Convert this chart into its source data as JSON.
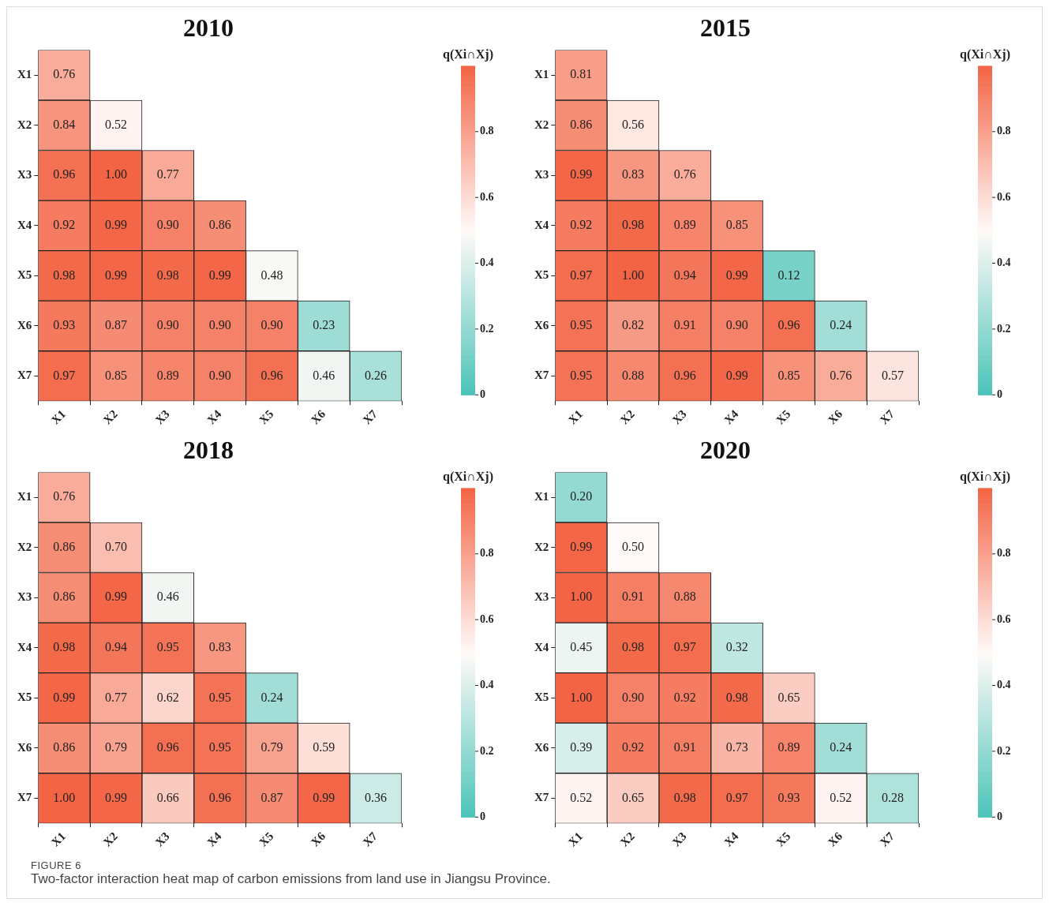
{
  "chart_data": [
    {
      "type": "heatmap",
      "title": "2010",
      "clabel": "q(Xi∩Xj)",
      "categories": [
        "X1",
        "X2",
        "X3",
        "X4",
        "X5",
        "X6",
        "X7"
      ],
      "y_categories": [
        "X1",
        "X2",
        "X3",
        "X4",
        "X5",
        "X6",
        "X7"
      ],
      "clim": [
        0,
        1
      ],
      "cticks": [
        0,
        0.2,
        0.4,
        0.6,
        0.8
      ],
      "cells": [
        [
          0.76,
          null,
          null,
          null,
          null,
          null,
          null
        ],
        [
          0.84,
          0.52,
          null,
          null,
          null,
          null,
          null
        ],
        [
          0.96,
          1.0,
          0.77,
          null,
          null,
          null,
          null
        ],
        [
          0.92,
          0.99,
          0.9,
          0.86,
          null,
          null,
          null
        ],
        [
          0.98,
          0.99,
          0.98,
          0.99,
          0.48,
          null,
          null
        ],
        [
          0.93,
          0.87,
          0.9,
          0.9,
          0.9,
          0.23,
          null
        ],
        [
          0.97,
          0.85,
          0.89,
          0.9,
          0.96,
          0.46,
          0.26
        ]
      ],
      "cell_labels": [
        [
          "0.76",
          null,
          null,
          null,
          null,
          null,
          null
        ],
        [
          "0.84",
          "0.52",
          null,
          null,
          null,
          null,
          null
        ],
        [
          "0.96",
          "1.00",
          "0.77",
          null,
          null,
          null,
          null
        ],
        [
          "0.92",
          "0.99",
          "0.90",
          "0.86",
          null,
          null,
          null
        ],
        [
          "0.98",
          "0.99",
          "0.98",
          "0.99",
          "0.48",
          null,
          null
        ],
        [
          "0.93",
          "0.87",
          "0.90",
          "0.90",
          "0.90",
          "0.23",
          null
        ],
        [
          "0.97",
          "0.85",
          "0.89",
          "0.90",
          "0.96",
          "0.46",
          "0.26"
        ]
      ]
    },
    {
      "type": "heatmap",
      "title": "2015",
      "clabel": "q(Xi∩Xj)",
      "categories": [
        "X1",
        "X2",
        "X3",
        "X4",
        "X5",
        "X6",
        "X7"
      ],
      "y_categories": [
        "X1",
        "X2",
        "X3",
        "X4",
        "X5",
        "X6",
        "X7"
      ],
      "clim": [
        0,
        1
      ],
      "cticks": [
        0,
        0.2,
        0.4,
        0.6,
        0.8
      ],
      "cells": [
        [
          0.81,
          null,
          null,
          null,
          null,
          null,
          null
        ],
        [
          0.86,
          0.56,
          null,
          null,
          null,
          null,
          null
        ],
        [
          0.99,
          0.83,
          0.76,
          null,
          null,
          null,
          null
        ],
        [
          0.92,
          0.98,
          0.89,
          0.85,
          null,
          null,
          null
        ],
        [
          0.97,
          1.0,
          0.94,
          0.99,
          0.12,
          null,
          null
        ],
        [
          0.95,
          0.82,
          0.91,
          0.9,
          0.96,
          0.24,
          null
        ],
        [
          0.95,
          0.88,
          0.96,
          0.99,
          0.85,
          0.76,
          0.57
        ]
      ],
      "cell_labels": [
        [
          "0.81",
          null,
          null,
          null,
          null,
          null,
          null
        ],
        [
          "0.86",
          "0.56",
          null,
          null,
          null,
          null,
          null
        ],
        [
          "0.99",
          "0.83",
          "0.76",
          null,
          null,
          null,
          null
        ],
        [
          "0.92",
          "0.98",
          "0.89",
          "0.85",
          null,
          null,
          null
        ],
        [
          "0.97",
          "1.00",
          "0.94",
          "0.99",
          "0.12",
          null,
          null
        ],
        [
          "0.95",
          "0.82",
          "0.91",
          "0.90",
          "0.96",
          "0.24",
          null
        ],
        [
          "0.95",
          "0.88",
          "0.96",
          "0.99",
          "0.85",
          "0.76",
          "0.57"
        ]
      ]
    },
    {
      "type": "heatmap",
      "title": "2018",
      "clabel": "q(Xi∩Xj)",
      "categories": [
        "X1",
        "X2",
        "X3",
        "X4",
        "X5",
        "X6",
        "X7"
      ],
      "y_categories": [
        "X1",
        "X2",
        "X3",
        "X4",
        "X5",
        "X6",
        "X7"
      ],
      "clim": [
        0,
        1
      ],
      "cticks": [
        0,
        0.2,
        0.4,
        0.6,
        0.8
      ],
      "cells": [
        [
          0.76,
          null,
          null,
          null,
          null,
          null,
          null
        ],
        [
          0.86,
          0.7,
          null,
          null,
          null,
          null,
          null
        ],
        [
          0.86,
          0.99,
          0.46,
          null,
          null,
          null,
          null
        ],
        [
          0.98,
          0.94,
          0.95,
          0.83,
          null,
          null,
          null
        ],
        [
          0.99,
          0.77,
          0.62,
          0.95,
          0.24,
          null,
          null
        ],
        [
          0.86,
          0.79,
          0.96,
          0.95,
          0.79,
          0.59,
          null
        ],
        [
          1.0,
          0.99,
          0.66,
          0.96,
          0.87,
          0.99,
          0.36
        ]
      ],
      "cell_labels": [
        [
          "0.76",
          null,
          null,
          null,
          null,
          null,
          null
        ],
        [
          "0.86",
          "0.70",
          null,
          null,
          null,
          null,
          null
        ],
        [
          "0.86",
          "0.99",
          "0.46",
          null,
          null,
          null,
          null
        ],
        [
          "0.98",
          "0.94",
          "0.95",
          "0.83",
          null,
          null,
          null
        ],
        [
          "0.99",
          "0.77",
          "0.62",
          "0.95",
          "0.24",
          null,
          null
        ],
        [
          "0.86",
          "0.79",
          "0.96",
          "0.95",
          "0.79",
          "0.59",
          null
        ],
        [
          "1.00",
          "0.99",
          "0.66",
          "0.96",
          "0.87",
          "0.99",
          "0.36"
        ]
      ]
    },
    {
      "type": "heatmap",
      "title": "2020",
      "clabel": "q(Xi∩Xj)",
      "categories": [
        "X1",
        "X2",
        "X3",
        "X4",
        "X5",
        "X6",
        "X7"
      ],
      "y_categories": [
        "X1",
        "X2",
        "X3",
        "X4",
        "X5",
        "X6",
        "X7"
      ],
      "clim": [
        0,
        1
      ],
      "cticks": [
        0,
        0.2,
        0.4,
        0.6,
        0.8
      ],
      "annotations": [
        "FIGURE 6",
        "Two-factor interaction heat map of carbon emissions from land use in Jiangsu Province."
      ],
      "cells": [
        [
          0.2,
          null,
          null,
          null,
          null,
          null,
          null
        ],
        [
          0.99,
          0.5,
          null,
          null,
          null,
          null,
          null
        ],
        [
          1.0,
          0.91,
          0.88,
          null,
          null,
          null,
          null
        ],
        [
          0.45,
          0.98,
          0.97,
          0.32,
          null,
          null,
          null
        ],
        [
          1.0,
          0.9,
          0.92,
          0.98,
          0.65,
          null,
          null
        ],
        [
          0.39,
          0.92,
          0.91,
          0.73,
          0.89,
          0.24,
          null
        ],
        [
          0.52,
          0.65,
          0.98,
          0.97,
          0.93,
          0.52,
          0.28
        ]
      ],
      "cell_labels": [
        [
          "0.20",
          null,
          null,
          null,
          null,
          null,
          null
        ],
        [
          "0.99",
          "0.50",
          null,
          null,
          null,
          null,
          null
        ],
        [
          "1.00",
          "0.91",
          "0.88",
          null,
          null,
          null,
          null
        ],
        [
          "0.45",
          "0.98",
          "0.97",
          "0.32",
          null,
          null,
          null
        ],
        [
          "1.00",
          "0.90",
          "0.92",
          "0.98",
          "0.65",
          null,
          null
        ],
        [
          "0.39",
          "0.92",
          "0.91",
          "0.73",
          "0.89",
          "0.24",
          null
        ],
        [
          "0.52",
          "0.65",
          "0.98",
          "0.97",
          "0.93",
          "0.52",
          "0.28"
        ]
      ]
    }
  ]
}
